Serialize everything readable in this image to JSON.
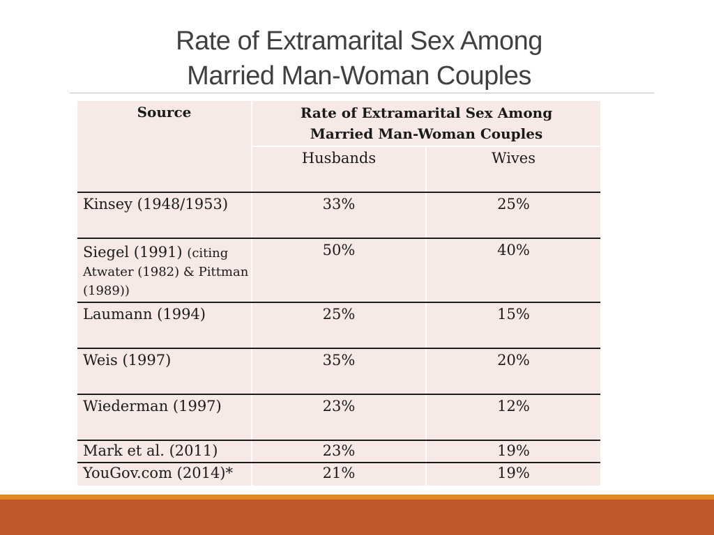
{
  "slide": {
    "title_line1": "Rate of Extramarital Sex Among",
    "title_line2": "Married Man-Woman Couples"
  },
  "table": {
    "header": {
      "source": "Source",
      "group_line1": "Rate of Extramarital Sex Among",
      "group_line2": "Married Man-Woman Couples",
      "husbands": "Husbands",
      "wives": "Wives"
    },
    "rows": [
      {
        "source": "Kinsey (1948/1953)",
        "note": "",
        "husbands": "33%",
        "wives": "25%"
      },
      {
        "source": "Siegel (1991) ",
        "note": "(citing Atwater (1982) & Pittman (1989))",
        "husbands": "50%",
        "wives": "40%"
      },
      {
        "source": "Laumann (1994)",
        "note": "",
        "husbands": "25%",
        "wives": "15%"
      },
      {
        "source": "Weis (1997)",
        "note": "",
        "husbands": "35%",
        "wives": "20%"
      },
      {
        "source": "Wiederman (1997)",
        "note": "",
        "husbands": "23%",
        "wives": "12%"
      },
      {
        "source": "Mark et al. (2011)",
        "note": "",
        "husbands": "23%",
        "wives": "19%"
      },
      {
        "source": "YouGov.com (2014)*",
        "note": "",
        "husbands": "21%",
        "wives": "19%"
      }
    ]
  },
  "theme": {
    "cell_background": "#f7e9e6",
    "footer_gold": "#e08b22",
    "footer_rust": "#c0582b",
    "title_color": "#404040"
  }
}
